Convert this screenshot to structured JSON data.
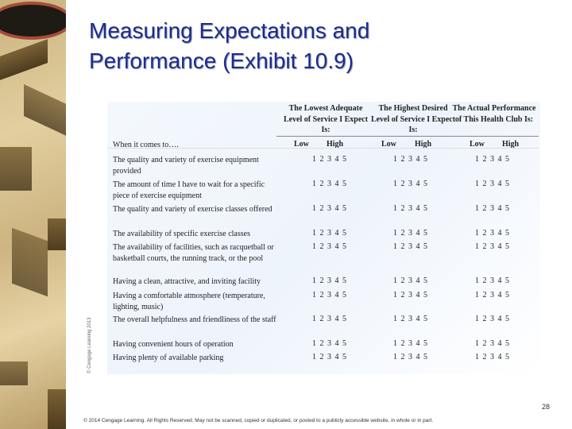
{
  "slide": {
    "title_line1": "Measuring Expectations and",
    "title_line2": "Performance (Exhibit 10.9)",
    "page_number": "28",
    "footer": "© 2014 Cengage Learning. All Rights Reserved. May not be scanned, copied or duplicated, or posted to a publicly accessible website, in whole or in part.",
    "image_credit": "© Cengage Learning 2013"
  },
  "table": {
    "columns": [
      {
        "header": "The Lowest Adequate Level of Service I Expect Is:",
        "low": "Low",
        "high": "High"
      },
      {
        "header": "The Highest Desired Level of Service I Expect Is:",
        "low": "Low",
        "high": "High"
      },
      {
        "header": "The Actual Performance of This Health Club Is:",
        "low": "Low",
        "high": "High"
      }
    ],
    "row_header": "When it comes to….",
    "scale": "1 2 3 4 5",
    "rows": [
      "The quality and variety of exercise equipment provided",
      "The amount of time I have to wait for a specific piece of exercise equipment",
      "The quality and variety of exercise classes offered",
      "The availability of specific exercise classes",
      "The availability of facilities, such as racquetball or basketball courts, the running track, or the pool",
      "Having a clean, attractive, and inviting facility",
      "Having a comfortable atmosphere (temperature, lighting, music)",
      "The overall helpfulness and friendliness of the staff",
      "Having convenient hours of operation",
      "Having plenty of available parking"
    ]
  }
}
